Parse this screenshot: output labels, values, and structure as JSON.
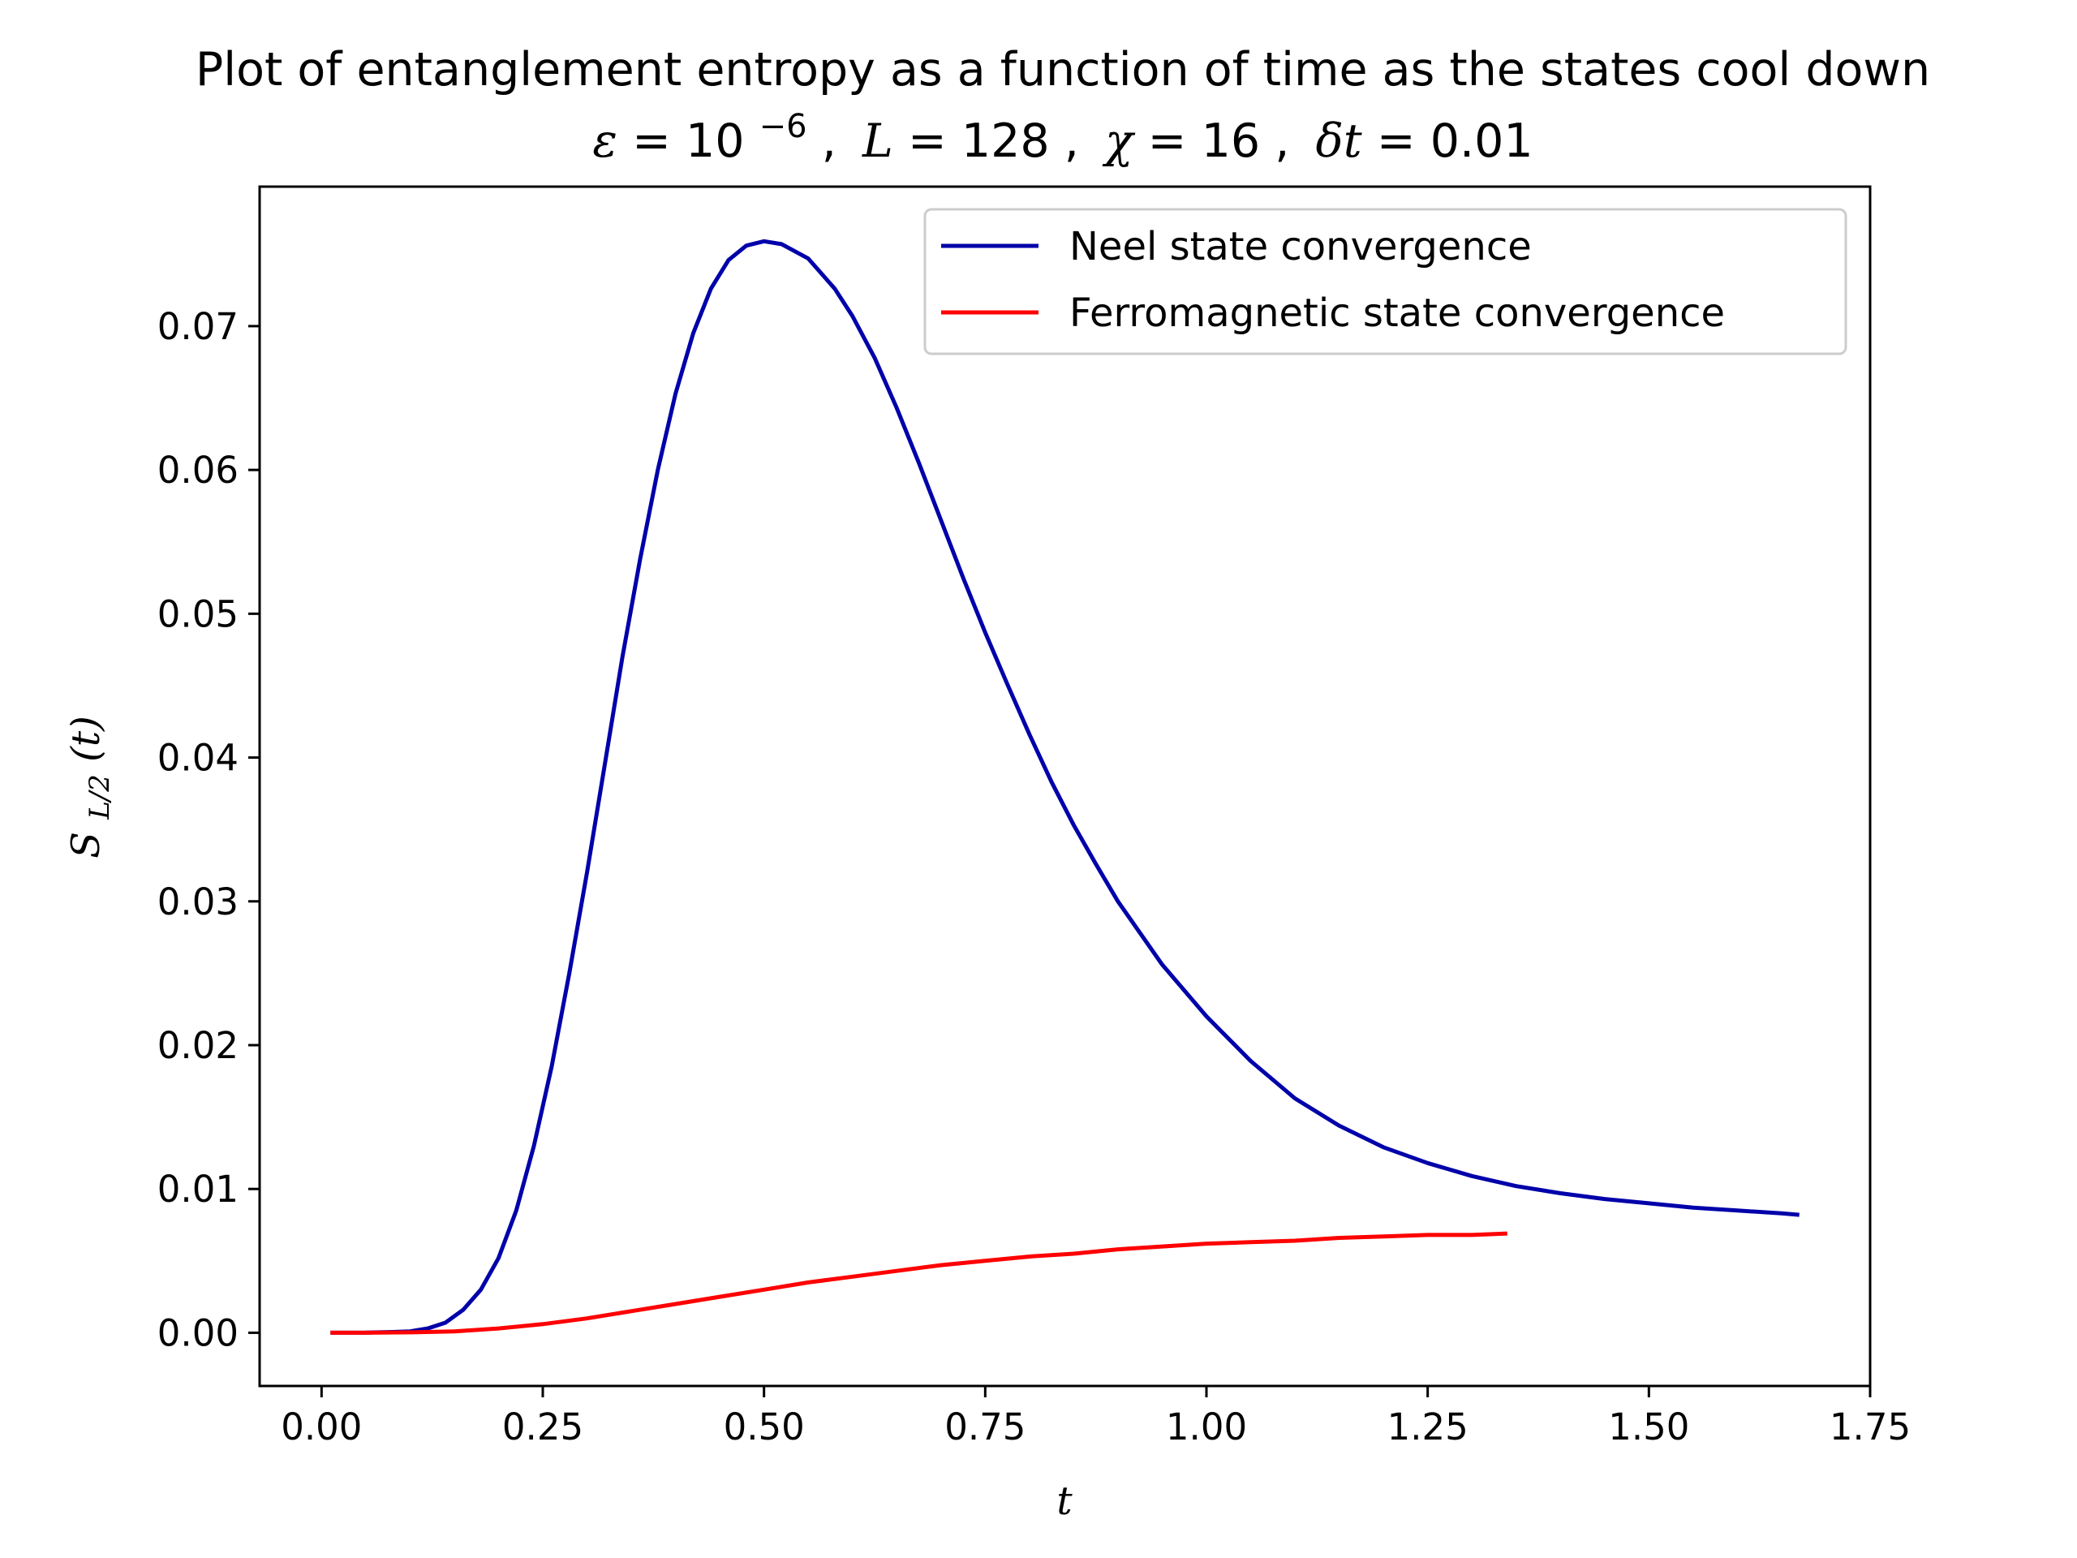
{
  "chart_data": {
    "type": "line",
    "title": "Plot of entanglement entropy as a function of time as the states cool down",
    "subtitle": {
      "eps_symbol": "ε",
      "eps_value": "10",
      "eps_exp": "−6",
      "L_symbol": "L",
      "L_value": "128",
      "chi_symbol": "χ",
      "chi_value": "16",
      "dt_symbol": "δt",
      "dt_value": "0.01",
      "equals": "=",
      "separator": ","
    },
    "xlabel": "t",
    "ylabel": {
      "base": "S",
      "sub": "L/2",
      "arg": "(t)"
    },
    "xlim": [
      -0.07,
      1.75
    ],
    "ylim": [
      -0.0037,
      0.0797
    ],
    "x_ticks": [
      0.0,
      0.25,
      0.5,
      0.75,
      1.0,
      1.25,
      1.5,
      1.75
    ],
    "x_tick_labels": [
      "0.00",
      "0.25",
      "0.50",
      "0.75",
      "1.00",
      "1.25",
      "1.50",
      "1.75"
    ],
    "y_ticks": [
      0.0,
      0.01,
      0.02,
      0.03,
      0.04,
      0.05,
      0.06,
      0.07
    ],
    "y_tick_labels": [
      "0.00",
      "0.01",
      "0.02",
      "0.03",
      "0.04",
      "0.05",
      "0.06",
      "0.07"
    ],
    "grid": false,
    "legend_position": "upper right",
    "series": [
      {
        "name": "Neel state convergence",
        "color": "#0000aa",
        "points": [
          [
            0.01,
            0.0
          ],
          [
            0.05,
            1e-05
          ],
          [
            0.08,
            5e-05
          ],
          [
            0.1,
            0.0001
          ],
          [
            0.12,
            0.0003
          ],
          [
            0.14,
            0.0007
          ],
          [
            0.16,
            0.0016
          ],
          [
            0.18,
            0.003
          ],
          [
            0.2,
            0.0052
          ],
          [
            0.22,
            0.0085
          ],
          [
            0.24,
            0.013
          ],
          [
            0.26,
            0.0185
          ],
          [
            0.28,
            0.025
          ],
          [
            0.3,
            0.032
          ],
          [
            0.32,
            0.0395
          ],
          [
            0.34,
            0.047
          ],
          [
            0.36,
            0.0538
          ],
          [
            0.38,
            0.06
          ],
          [
            0.4,
            0.0653
          ],
          [
            0.42,
            0.0695
          ],
          [
            0.44,
            0.0726
          ],
          [
            0.46,
            0.0746
          ],
          [
            0.48,
            0.0756
          ],
          [
            0.5,
            0.0759
          ],
          [
            0.52,
            0.0757
          ],
          [
            0.55,
            0.0747
          ],
          [
            0.58,
            0.0726
          ],
          [
            0.6,
            0.0707
          ],
          [
            0.625,
            0.0678
          ],
          [
            0.65,
            0.0643
          ],
          [
            0.675,
            0.0605
          ],
          [
            0.7,
            0.0565
          ],
          [
            0.725,
            0.0525
          ],
          [
            0.75,
            0.0487
          ],
          [
            0.775,
            0.0451
          ],
          [
            0.8,
            0.0416
          ],
          [
            0.825,
            0.0383
          ],
          [
            0.85,
            0.0353
          ],
          [
            0.875,
            0.0326
          ],
          [
            0.9,
            0.03
          ],
          [
            0.95,
            0.0256
          ],
          [
            1.0,
            0.022
          ],
          [
            1.05,
            0.0189
          ],
          [
            1.1,
            0.0163
          ],
          [
            1.15,
            0.0144
          ],
          [
            1.2,
            0.0129
          ],
          [
            1.25,
            0.0118
          ],
          [
            1.3,
            0.0109
          ],
          [
            1.35,
            0.0102
          ],
          [
            1.4,
            0.0097
          ],
          [
            1.45,
            0.0093
          ],
          [
            1.5,
            0.009
          ],
          [
            1.55,
            0.0087
          ],
          [
            1.6,
            0.0085
          ],
          [
            1.65,
            0.0083
          ],
          [
            1.67,
            0.0082
          ]
        ]
      },
      {
        "name": "Ferromagnetic state convergence",
        "color": "#ff0000",
        "points": [
          [
            0.01,
            0.0
          ],
          [
            0.05,
            0.0
          ],
          [
            0.1,
            3e-05
          ],
          [
            0.15,
            0.0001
          ],
          [
            0.2,
            0.0003
          ],
          [
            0.25,
            0.0006
          ],
          [
            0.3,
            0.001
          ],
          [
            0.35,
            0.0015
          ],
          [
            0.4,
            0.002
          ],
          [
            0.45,
            0.0025
          ],
          [
            0.5,
            0.003
          ],
          [
            0.55,
            0.0035
          ],
          [
            0.6,
            0.0039
          ],
          [
            0.65,
            0.0043
          ],
          [
            0.7,
            0.0047
          ],
          [
            0.75,
            0.005
          ],
          [
            0.8,
            0.0053
          ],
          [
            0.85,
            0.0055
          ],
          [
            0.9,
            0.0058
          ],
          [
            0.95,
            0.006
          ],
          [
            1.0,
            0.0062
          ],
          [
            1.05,
            0.0063
          ],
          [
            1.1,
            0.0064
          ],
          [
            1.15,
            0.0066
          ],
          [
            1.2,
            0.0067
          ],
          [
            1.25,
            0.0068
          ],
          [
            1.3,
            0.0068
          ],
          [
            1.34,
            0.0069
          ]
        ]
      }
    ]
  }
}
